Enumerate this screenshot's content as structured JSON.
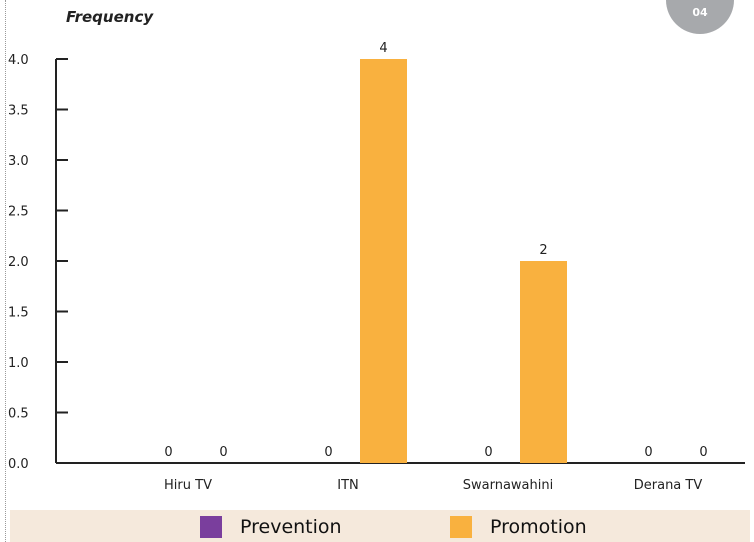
{
  "page_badge": "04",
  "colors": {
    "prevention": "#7a3e9d",
    "promotion": "#f9b13f",
    "axis": "#222222",
    "legend_bg": "#f5e9dc"
  },
  "chart_data": {
    "type": "bar",
    "title": "",
    "ylabel": "Frequency",
    "xlabel": "",
    "categories": [
      "Hiru TV",
      "ITN",
      "Swarnawahini",
      "Derana TV"
    ],
    "series": [
      {
        "name": "Prevention",
        "values": [
          0,
          0,
          0,
          0
        ]
      },
      {
        "name": "Promotion",
        "values": [
          0,
          4,
          2,
          0
        ]
      }
    ],
    "data_labels": [
      [
        "0",
        "0",
        "0",
        "0"
      ],
      [
        "0",
        "4",
        "2",
        "0"
      ]
    ],
    "ylim": [
      0,
      4
    ],
    "yticks": [
      "0.0",
      "0.5",
      "1.0",
      "1.5",
      "2.0",
      "2.5",
      "3.0",
      "3.5",
      "4.0"
    ],
    "grid": false,
    "legend_position": "bottom"
  }
}
